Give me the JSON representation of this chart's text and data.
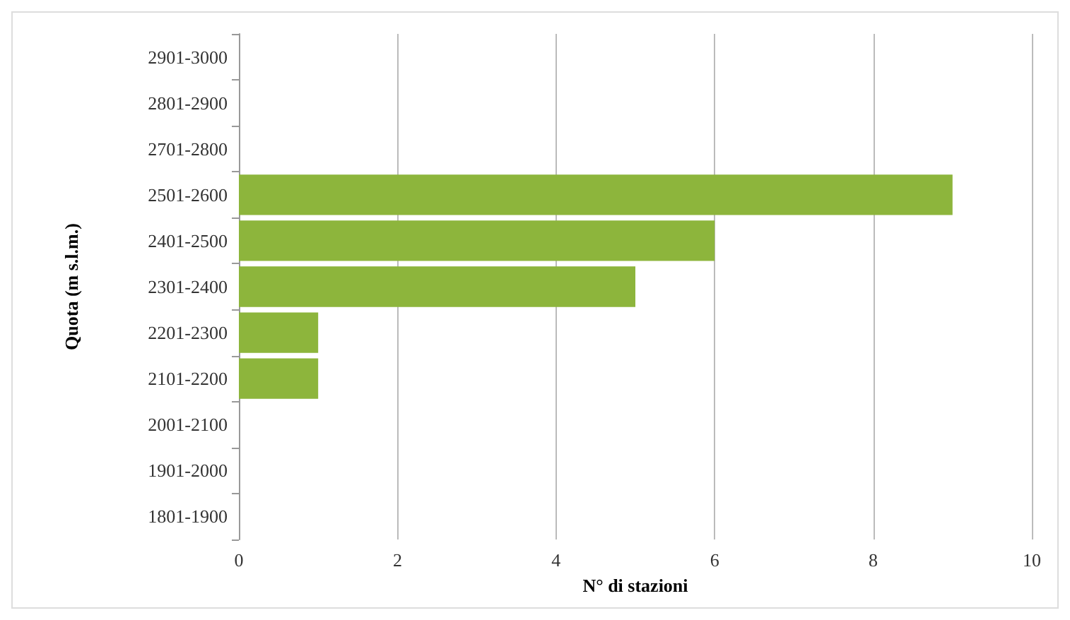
{
  "chart_data": {
    "type": "bar",
    "orientation": "horizontal",
    "xlabel": "N° di stazioni",
    "ylabel": "Quota (m s.l.m.)",
    "categories": [
      "2901-3000",
      "2801-2900",
      "2701-2800",
      "2501-2600",
      "2401-2500",
      "2301-2400",
      "2201-2300",
      "2101-2200",
      "2001-2100",
      "1901-2000",
      "1801-1900"
    ],
    "values": [
      0,
      0,
      0,
      9,
      6,
      5,
      1,
      1,
      0,
      0,
      0
    ],
    "color": "#8db53c",
    "xlim": [
      0,
      10
    ],
    "xticks": [
      0,
      2,
      4,
      6,
      8,
      10
    ],
    "grid": "x"
  }
}
